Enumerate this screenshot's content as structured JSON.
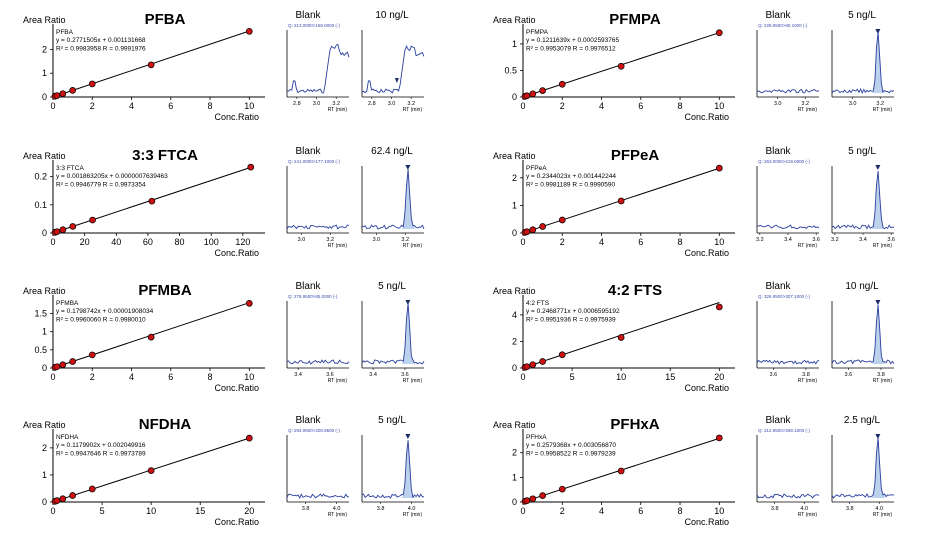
{
  "common": {
    "y_axis_label": "Area Ratio",
    "x_axis_label": "Conc.Ratio",
    "blank_label": "Blank",
    "rt_label": "RT (min)"
  },
  "colors": {
    "curve": "#000000",
    "point": "#cc1111",
    "trace": "#2a3f9e",
    "fill": "#bcd2ec",
    "qlabel": "#3a4fb0"
  },
  "chart_data": [
    {
      "type": "scatter",
      "title": "PFBA",
      "level": "10 ng/L",
      "ylabel": "Area Ratio",
      "xlabel": "Conc.Ratio",
      "eq": [
        "PFBA",
        "y = 0.2771505x + 0.001131668",
        "R² = 0.9983958    R = 0.9991976"
      ],
      "slope": 0.2771505,
      "intercept": 0.001131668,
      "x": [
        0.1,
        0.2,
        0.5,
        1,
        2,
        5,
        10
      ],
      "y": [
        0.03,
        0.06,
        0.14,
        0.28,
        0.55,
        1.35,
        2.76
      ],
      "xlim": [
        0,
        10.8
      ],
      "ylim": [
        0,
        2.9
      ],
      "xticks": [
        0,
        2,
        4,
        6,
        8,
        10
      ],
      "yticks": [
        0,
        1,
        2
      ],
      "q_label": "Q: 213.0000>169.0000 (-)",
      "blank": {
        "xticks": [
          2.8,
          3.0,
          3.2
        ],
        "xlim": [
          2.7,
          3.33
        ]
      },
      "spike": {
        "xticks": [
          2.8,
          3.0,
          3.2
        ],
        "xlim": [
          2.7,
          3.33
        ]
      }
    },
    {
      "type": "scatter",
      "title": "PFMPA",
      "level": "5 ng/L",
      "ylabel": "Area Ratio",
      "xlabel": "Conc.Ratio",
      "eq": [
        "PFMPA",
        "y = 0.1211639x + 0.0002593765",
        "R² = 0.9953079    R = 0.9976512"
      ],
      "slope": 0.1211639,
      "intercept": 0.0002593765,
      "x": [
        0.1,
        0.2,
        0.5,
        1,
        2,
        5,
        10
      ],
      "y": [
        0.012,
        0.024,
        0.06,
        0.12,
        0.24,
        0.58,
        1.21
      ],
      "xlim": [
        0,
        10.8
      ],
      "ylim": [
        0,
        1.3
      ],
      "xticks": [
        0,
        2,
        4,
        6,
        8,
        10
      ],
      "yticks": [
        0,
        0.5,
        1.0
      ],
      "q_label": "Q: 228.9500>85.1000 (-)",
      "blank": {
        "xticks": [
          3.0,
          3.2
        ],
        "xlim": [
          2.85,
          3.3
        ]
      },
      "spike": {
        "xticks": [
          3.0,
          3.2
        ],
        "xlim": [
          2.85,
          3.3
        ]
      }
    },
    {
      "type": "scatter",
      "title": "3:3 FTCA",
      "level": "62.4 ng/L",
      "ylabel": "Area Ratio",
      "xlabel": "Conc.Ratio",
      "eq": [
        "3:3 FTCA",
        "y = 0.001863205x + 0.0000007639463",
        "R² = 0.9946779    R = 0.9973354"
      ],
      "slope": 0.001863205,
      "intercept": 7.639463e-07,
      "x": [
        1.25,
        2.5,
        6.25,
        12.5,
        25,
        62.5,
        125
      ],
      "y": [
        0.0023,
        0.0047,
        0.0116,
        0.0233,
        0.046,
        0.113,
        0.234
      ],
      "xlim": [
        0,
        134
      ],
      "ylim": [
        0,
        0.245
      ],
      "xticks": [
        0,
        20,
        40,
        60,
        80,
        100,
        120
      ],
      "yticks": [
        0,
        0.1,
        0.2
      ],
      "q_label": "Q: 241.0000>177.1000 (-)",
      "blank": {
        "xticks": [
          3.0,
          3.2
        ],
        "xlim": [
          2.9,
          3.33
        ]
      },
      "spike": {
        "xticks": [
          3.0,
          3.2
        ],
        "xlim": [
          2.9,
          3.33
        ]
      }
    },
    {
      "type": "scatter",
      "title": "PFPeA",
      "level": "5 ng/L",
      "ylabel": "Area Ratio",
      "xlabel": "Conc.Ratio",
      "eq": [
        "PFPeA",
        "y = 0.2344023x + 0.001442244",
        "R² = 0.9981189    R = 0.9990590"
      ],
      "slope": 0.2344023,
      "intercept": 0.001442244,
      "x": [
        0.1,
        0.2,
        0.5,
        1,
        2,
        5,
        10
      ],
      "y": [
        0.024,
        0.047,
        0.118,
        0.235,
        0.47,
        1.16,
        2.35
      ],
      "xlim": [
        0,
        10.8
      ],
      "ylim": [
        0,
        2.5
      ],
      "xticks": [
        0,
        2,
        4,
        6,
        8,
        10
      ],
      "yticks": [
        0,
        1,
        2
      ],
      "q_label": "Q: 263.0000>219.0000 (-)",
      "blank": {
        "xticks": [
          3.2,
          3.4,
          3.6
        ],
        "xlim": [
          3.18,
          3.62
        ]
      },
      "spike": {
        "xticks": [
          3.2,
          3.4,
          3.6
        ],
        "xlim": [
          3.18,
          3.62
        ]
      }
    },
    {
      "type": "scatter",
      "title": "PFMBA",
      "level": "5 ng/L",
      "ylabel": "Area Ratio",
      "xlabel": "Conc.Ratio",
      "eq": [
        "PFMBA",
        "y = 0.1798742x + 0.00001908034",
        "R² = 0.9960060    R = 0.9980010"
      ],
      "slope": 0.1798742,
      "intercept": 1.908034e-05,
      "x": [
        0.1,
        0.2,
        0.5,
        1,
        2,
        5,
        10
      ],
      "y": [
        0.018,
        0.036,
        0.09,
        0.18,
        0.36,
        0.85,
        1.78
      ],
      "xlim": [
        0,
        10.8
      ],
      "ylim": [
        0,
        1.9
      ],
      "xticks": [
        0,
        2,
        4,
        6,
        8,
        10
      ],
      "yticks": [
        0,
        0.5,
        1.0,
        1.5
      ],
      "q_label": "Q: 278.9500>85.0000 (-)",
      "blank": {
        "xticks": [
          3.4,
          3.6
        ],
        "xlim": [
          3.33,
          3.72
        ]
      },
      "spike": {
        "xticks": [
          3.4,
          3.6
        ],
        "xlim": [
          3.33,
          3.72
        ]
      }
    },
    {
      "type": "scatter",
      "title": "4:2 FTS",
      "level": "10 ng/L",
      "ylabel": "Area Ratio",
      "xlabel": "Conc.Ratio",
      "eq": [
        "4:2 FTS",
        "y = 0.2468771x + 0.0006595192",
        "R² = 0.9951936    R = 0.9975939"
      ],
      "slope": 0.2468771,
      "intercept": 0.0006595192,
      "x": [
        0.2,
        0.4,
        1,
        2,
        4,
        10,
        20
      ],
      "y": [
        0.05,
        0.1,
        0.25,
        0.49,
        1.0,
        2.3,
        4.6
      ],
      "xlim": [
        0,
        21.6
      ],
      "ylim": [
        0,
        5.2
      ],
      "xticks": [
        0,
        5,
        10,
        15,
        20
      ],
      "yticks": [
        0,
        2,
        4
      ],
      "q_label": "Q: 326.9500>307.1000 (-)",
      "blank": {
        "xticks": [
          3.6,
          3.8
        ],
        "xlim": [
          3.5,
          3.88
        ]
      },
      "spike": {
        "xticks": [
          3.6,
          3.8
        ],
        "xlim": [
          3.5,
          3.88
        ]
      }
    },
    {
      "type": "scatter",
      "title": "NFDHA",
      "level": "5 ng/L",
      "ylabel": "Area Ratio",
      "xlabel": "Conc.Ratio",
      "eq": [
        "NFDHA",
        "y = 0.1179902x + 0.002049916",
        "R² = 0.9947646    R = 0.9973789"
      ],
      "slope": 0.1179902,
      "intercept": 0.002049916,
      "x": [
        0.2,
        0.4,
        1,
        2,
        4,
        10,
        20
      ],
      "y": [
        0.025,
        0.05,
        0.12,
        0.24,
        0.48,
        1.16,
        2.36
      ],
      "xlim": [
        0,
        21.6
      ],
      "ylim": [
        0,
        2.55
      ],
      "xticks": [
        0,
        5,
        10,
        15,
        20
      ],
      "yticks": [
        0,
        1,
        2
      ],
      "q_label": "Q: 294.9500>200.9500 (-)",
      "blank": {
        "xticks": [
          3.8,
          4.0
        ],
        "xlim": [
          3.68,
          4.08
        ]
      },
      "spike": {
        "xticks": [
          3.8,
          4.0
        ],
        "xlim": [
          3.68,
          4.08
        ]
      }
    },
    {
      "type": "scatter",
      "title": "PFHxA",
      "level": "2.5 ng/L",
      "ylabel": "Area Ratio",
      "xlabel": "Conc.Ratio",
      "eq": [
        "PFHxA",
        "y = 0.2579368x + 0.003056870",
        "R² = 0.9958522    R = 0.9979239"
      ],
      "slope": 0.2579368,
      "intercept": 0.00305687,
      "x": [
        0.1,
        0.2,
        0.5,
        1,
        2,
        5,
        10
      ],
      "y": [
        0.028,
        0.055,
        0.13,
        0.26,
        0.52,
        1.26,
        2.6
      ],
      "xlim": [
        0,
        10.8
      ],
      "ylim": [
        0,
        2.8
      ],
      "xticks": [
        0,
        2,
        4,
        6,
        8,
        10
      ],
      "yticks": [
        0,
        1,
        2
      ],
      "q_label": "Q: 312.9500>269.1000 (-)",
      "blank": {
        "xticks": [
          3.8,
          4.0
        ],
        "xlim": [
          3.68,
          4.1
        ]
      },
      "spike": {
        "xticks": [
          3.8,
          4.0
        ],
        "xlim": [
          3.68,
          4.1
        ]
      }
    }
  ]
}
